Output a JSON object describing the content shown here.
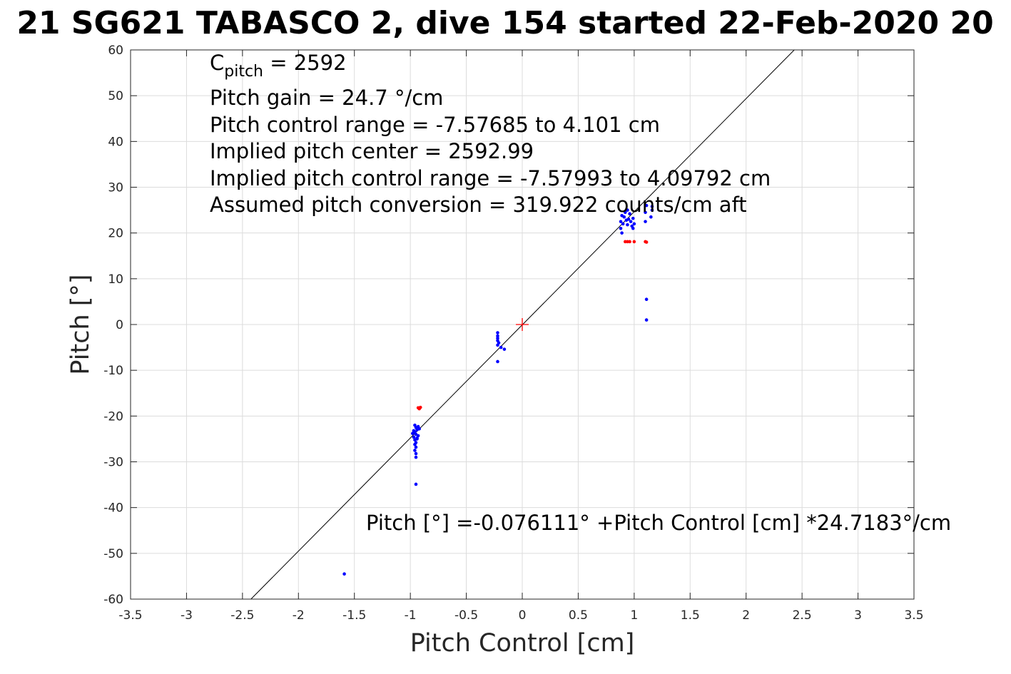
{
  "chart_data": {
    "type": "scatter",
    "title": "21 SG621 TABASCO 2, dive 154 started 22-Feb-2020 20",
    "xlabel": "Pitch Control [cm]",
    "ylabel": "Pitch [°]",
    "xlim": [
      -3.5,
      3.5
    ],
    "ylim": [
      -60,
      60
    ],
    "xticks": [
      -3.5,
      -3,
      -2.5,
      -2,
      -1.5,
      -1,
      -0.5,
      0,
      0.5,
      1,
      1.5,
      2,
      2.5,
      3,
      3.5
    ],
    "xtick_labels": [
      "-3.5",
      "-3",
      "-2.5",
      "-2",
      "-1.5",
      "-1",
      "-0.5",
      "0",
      "0.5",
      "1",
      "1.5",
      "2",
      "2.5",
      "3",
      "3.5"
    ],
    "yticks": [
      -60,
      -50,
      -40,
      -30,
      -20,
      -10,
      0,
      10,
      20,
      30,
      40,
      50,
      60
    ],
    "ytick_labels": [
      "-60",
      "-50",
      "-40",
      "-30",
      "-20",
      "-10",
      "0",
      "10",
      "20",
      "30",
      "40",
      "50",
      "60"
    ],
    "grid": true,
    "colors": {
      "used": "#0000ff",
      "excluded": "#ff0000",
      "fit": "#000000",
      "center": "#ff0000"
    },
    "fit": {
      "intercept": -0.076111,
      "slope": 24.7183
    },
    "center_marker": {
      "x": 0,
      "y": 0
    },
    "series": [
      {
        "points": [
          [
            -0.96,
            -22.0
          ],
          [
            -0.95,
            -22.5
          ],
          [
            -0.94,
            -23.0
          ],
          [
            -0.97,
            -23.2
          ],
          [
            -0.96,
            -23.5
          ],
          [
            -0.95,
            -24.0
          ],
          [
            -0.93,
            -24.3
          ],
          [
            -0.97,
            -24.6
          ],
          [
            -0.94,
            -25.0
          ],
          [
            -0.96,
            -25.2
          ],
          [
            -0.95,
            -25.8
          ],
          [
            -0.93,
            -22.3
          ],
          [
            -0.92,
            -22.8
          ],
          [
            -0.98,
            -23.8
          ],
          [
            -0.96,
            -26.2
          ],
          [
            -0.95,
            -26.8
          ],
          [
            -0.96,
            -27.5
          ],
          [
            -0.95,
            -28.2
          ],
          [
            -0.95,
            -29.0
          ],
          [
            -0.94,
            -24.8
          ],
          [
            -0.95,
            -34.9
          ],
          [
            -1.59,
            -54.5
          ],
          [
            -0.22,
            -1.8
          ],
          [
            -0.22,
            -2.5
          ],
          [
            -0.22,
            -3.0
          ],
          [
            -0.22,
            -3.5
          ],
          [
            -0.21,
            -4.0
          ],
          [
            -0.22,
            -4.5
          ],
          [
            -0.19,
            -5.0
          ],
          [
            -0.16,
            -5.4
          ],
          [
            -0.22,
            -8.1
          ],
          [
            0.88,
            21.0
          ],
          [
            0.88,
            22.5
          ],
          [
            0.89,
            23.8
          ],
          [
            0.9,
            22.0
          ],
          [
            0.91,
            23.5
          ],
          [
            0.92,
            24.5
          ],
          [
            0.93,
            22.8
          ],
          [
            0.94,
            21.8
          ],
          [
            0.95,
            23.0
          ],
          [
            0.96,
            24.2
          ],
          [
            0.97,
            22.5
          ],
          [
            0.98,
            21.5
          ],
          [
            0.99,
            23.2
          ],
          [
            1.0,
            22.0
          ],
          [
            0.89,
            20.0
          ],
          [
            0.94,
            25.0
          ],
          [
            0.99,
            21.0
          ],
          [
            1.1,
            22.5
          ],
          [
            1.1,
            24.5
          ],
          [
            1.11,
            26.0
          ],
          [
            1.15,
            23.5
          ],
          [
            1.16,
            25.0
          ],
          [
            1.16,
            25.8
          ],
          [
            1.11,
            5.5
          ],
          [
            1.11,
            1.0
          ]
        ]
      },
      {
        "points": [
          [
            -0.93,
            -18.2
          ],
          [
            -0.92,
            -18.4
          ],
          [
            -0.91,
            -18.1
          ],
          [
            0.92,
            18.1
          ],
          [
            0.94,
            18.1
          ],
          [
            0.96,
            18.1
          ],
          [
            1.0,
            18.1
          ],
          [
            1.1,
            18.1
          ],
          [
            1.11,
            18.0
          ]
        ]
      }
    ],
    "annotations": [
      {
        "main": "C",
        "sub": "pitch",
        "rest": " = 2592"
      },
      {
        "text": "Pitch gain = 24.7 °/cm"
      },
      {
        "text": "Pitch control range = -7.57685 to 4.101 cm"
      },
      {
        "text": "Implied pitch center = 2592.99"
      },
      {
        "text": "Implied pitch control range = -7.57993 to 4.09792 cm"
      },
      {
        "text": "Assumed pitch conversion = 319.922 counts/cm aft"
      }
    ],
    "equation": "Pitch [°] =-0.076111° +Pitch Control [cm] *24.7183°/cm"
  }
}
